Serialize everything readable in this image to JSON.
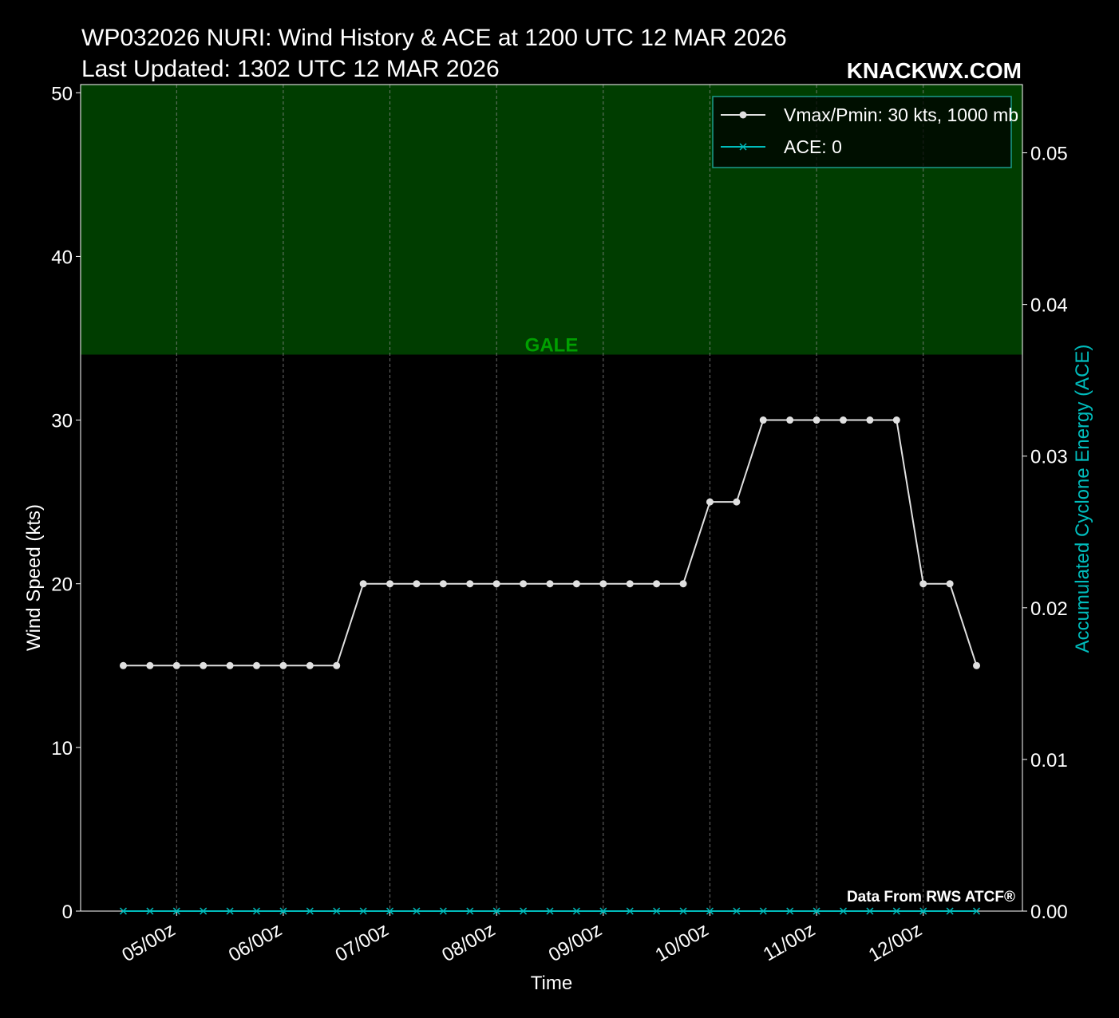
{
  "header": {
    "title_line1": "WP032026 NURI: Wind History & ACE at 1200 UTC 12 MAR 2026",
    "title_line2": "Last Updated: 1302 UTC 12 MAR 2026",
    "brand": "KNACKWX.COM"
  },
  "footer": {
    "source": "Data From RWS ATCF®"
  },
  "colors": {
    "background": "#000000",
    "gale_band": "#003d00",
    "gale_text": "#00a000",
    "vmax_line": "#e0e0e0",
    "ace_line": "#00bcbc",
    "grid": "#888888"
  },
  "chart_data": {
    "type": "line",
    "xlabel": "Time",
    "ylabel": "Wind Speed (kts)",
    "y2label": "Accumulated Cyclone Energy (ACE)",
    "ylim": [
      0,
      50.5
    ],
    "y2lim": [
      0,
      0.0545
    ],
    "yticks": [
      0,
      10,
      20,
      30,
      40,
      50
    ],
    "y2ticks": [
      "0.00",
      "0.01",
      "0.02",
      "0.03",
      "0.04",
      "0.05"
    ],
    "y2tick_values": [
      0,
      0.01,
      0.02,
      0.03,
      0.04,
      0.05
    ],
    "x_tick_labels": [
      "05/00z",
      "06/00z",
      "07/00z",
      "08/00z",
      "09/00z",
      "10/00z",
      "11/00z",
      "12/00z"
    ],
    "x_tick_values": [
      5.0,
      6.0,
      7.0,
      8.0,
      9.0,
      10.0,
      11.0,
      12.0
    ],
    "grid": "vertical dashed",
    "legend_position": "top-right",
    "bands": [
      {
        "label": "GALE",
        "from": 34,
        "to": 50.5
      }
    ],
    "series": [
      {
        "name": "Vmax/Pmin: 30 kts, 1000 mb",
        "axis": "left",
        "marker": "circle",
        "x": [
          4.5,
          4.75,
          5.0,
          5.25,
          5.5,
          5.75,
          6.0,
          6.25,
          6.5,
          6.75,
          7.0,
          7.25,
          7.5,
          7.75,
          8.0,
          8.25,
          8.5,
          8.75,
          9.0,
          9.25,
          9.5,
          9.75,
          10.0,
          10.25,
          10.5,
          10.75,
          11.0,
          11.25,
          11.5,
          11.75,
          12.0,
          12.25,
          12.5
        ],
        "values": [
          15,
          15,
          15,
          15,
          15,
          15,
          15,
          15,
          15,
          20,
          20,
          20,
          20,
          20,
          20,
          20,
          20,
          20,
          20,
          20,
          20,
          20,
          25,
          25,
          30,
          30,
          30,
          30,
          30,
          30,
          20,
          20,
          15
        ]
      },
      {
        "name": "ACE: 0",
        "axis": "right",
        "marker": "x",
        "x": [
          4.5,
          4.75,
          5.0,
          5.25,
          5.5,
          5.75,
          6.0,
          6.25,
          6.5,
          6.75,
          7.0,
          7.25,
          7.5,
          7.75,
          8.0,
          8.25,
          8.5,
          8.75,
          9.0,
          9.25,
          9.5,
          9.75,
          10.0,
          10.25,
          10.5,
          10.75,
          11.0,
          11.25,
          11.5,
          11.75,
          12.0,
          12.25,
          12.5
        ],
        "values": [
          0,
          0,
          0,
          0,
          0,
          0,
          0,
          0,
          0,
          0,
          0,
          0,
          0,
          0,
          0,
          0,
          0,
          0,
          0,
          0,
          0,
          0,
          0,
          0,
          0,
          0,
          0,
          0,
          0,
          0,
          0,
          0,
          0
        ]
      }
    ]
  }
}
